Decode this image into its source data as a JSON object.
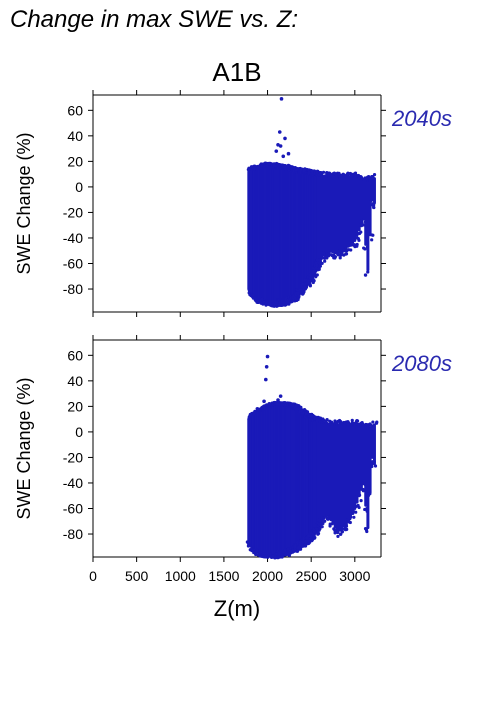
{
  "figure_title": "Change in max SWE vs. Z:",
  "scenario_label": "A1B",
  "colors": {
    "points": "#1a1ab8",
    "panel_label": "#2a2ab0",
    "axis": "#000000"
  },
  "chart_data": [
    {
      "type": "scatter",
      "panel_label": "2040s",
      "xlabel": "",
      "ylabel": "SWE Change (%)",
      "xlim": [
        0,
        3300
      ],
      "ylim": [
        -98,
        72
      ],
      "xticks": [
        0,
        500,
        1000,
        1500,
        2000,
        2500,
        3000
      ],
      "yticks": [
        -80,
        -60,
        -40,
        -20,
        0,
        20,
        40,
        60
      ],
      "show_x_tick_labels": false,
      "series": [
        {
          "color": "#1a1ab8",
          "dense_range": {
            "x": [
              1800,
              3250
            ],
            "profile": [
              [
                1800,
                -80,
                12
              ],
              [
                1900,
                -86,
                14
              ],
              [
                2000,
                -88,
                16
              ],
              [
                2100,
                -89,
                15
              ],
              [
                2200,
                -88,
                14
              ],
              [
                2300,
                -85,
                12
              ],
              [
                2400,
                -78,
                11
              ],
              [
                2500,
                -70,
                10
              ],
              [
                2600,
                -55,
                9
              ],
              [
                2700,
                -50,
                8
              ],
              [
                2800,
                -52,
                8
              ],
              [
                2900,
                -48,
                8
              ],
              [
                3000,
                -42,
                8
              ],
              [
                3100,
                -25,
                6
              ],
              [
                3150,
                -65,
                5
              ],
              [
                3200,
                -10,
                5
              ],
              [
                3250,
                -15,
                8
              ]
            ]
          },
          "outliers": [
            {
              "x": 2160,
              "y": 69
            },
            {
              "x": 2140,
              "y": 43
            },
            {
              "x": 2120,
              "y": 33
            },
            {
              "x": 2150,
              "y": 32
            },
            {
              "x": 2200,
              "y": 38
            },
            {
              "x": 2240,
              "y": 26
            },
            {
              "x": 2100,
              "y": 28
            },
            {
              "x": 2180,
              "y": 24
            }
          ]
        }
      ]
    },
    {
      "type": "scatter",
      "panel_label": "2080s",
      "xlabel": "Z(m)",
      "ylabel": "SWE Change (%)",
      "xlim": [
        0,
        3300
      ],
      "ylim": [
        -98,
        72
      ],
      "xticks": [
        0,
        500,
        1000,
        1500,
        2000,
        2500,
        3000
      ],
      "yticks": [
        -80,
        -60,
        -40,
        -20,
        0,
        20,
        40,
        60
      ],
      "show_x_tick_labels": true,
      "series": [
        {
          "color": "#1a1ab8",
          "dense_range": {
            "x": [
              1800,
              3250
            ],
            "profile": [
              [
                1800,
                -86,
                10
              ],
              [
                1900,
                -92,
                15
              ],
              [
                2000,
                -94,
                18
              ],
              [
                2100,
                -94,
                20
              ],
              [
                2200,
                -93,
                20
              ],
              [
                2300,
                -90,
                19
              ],
              [
                2400,
                -85,
                14
              ],
              [
                2500,
                -80,
                10
              ],
              [
                2600,
                -70,
                8
              ],
              [
                2700,
                -65,
                6
              ],
              [
                2800,
                -78,
                6
              ],
              [
                2900,
                -72,
                5
              ],
              [
                3000,
                -60,
                6
              ],
              [
                3100,
                -40,
                5
              ],
              [
                3150,
                -75,
                4
              ],
              [
                3200,
                -20,
                2
              ],
              [
                3250,
                -30,
                9
              ]
            ]
          },
          "outliers": [
            {
              "x": 2000,
              "y": 59
            },
            {
              "x": 1990,
              "y": 51
            },
            {
              "x": 1980,
              "y": 41
            },
            {
              "x": 2150,
              "y": 28
            },
            {
              "x": 2120,
              "y": 25
            },
            {
              "x": 1960,
              "y": 24
            },
            {
              "x": 2020,
              "y": 22
            }
          ]
        }
      ]
    }
  ]
}
